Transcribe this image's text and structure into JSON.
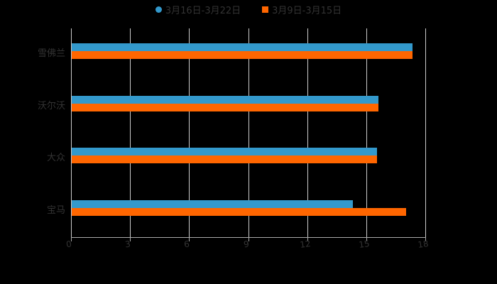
{
  "chart_data": {
    "type": "bar",
    "orientation": "horizontal",
    "title": "",
    "xlabel": "",
    "ylabel": "",
    "categories": [
      "雪佛兰",
      "沃尔沃",
      "大众",
      "宝马"
    ],
    "series": [
      {
        "name": "3月16日-3月22日",
        "color": "#3399CC",
        "values": [
          17.3,
          15.6,
          15.5,
          14.3
        ]
      },
      {
        "name": "3月9日-3月15日",
        "color": "#FF6600",
        "values": [
          17.3,
          15.6,
          15.5,
          17.0
        ]
      }
    ],
    "xlim": [
      0,
      18
    ],
    "xticks": [
      "0",
      "3",
      "6",
      "9",
      "12",
      "15",
      "18"
    ],
    "grid": true,
    "legend_position": "top"
  },
  "legend": {
    "items": [
      {
        "label": "3月16日-3月22日",
        "color": "#3399CC",
        "marker": "circle"
      },
      {
        "label": "3月9日-3月15日",
        "color": "#FF6600",
        "marker": "square"
      }
    ]
  }
}
